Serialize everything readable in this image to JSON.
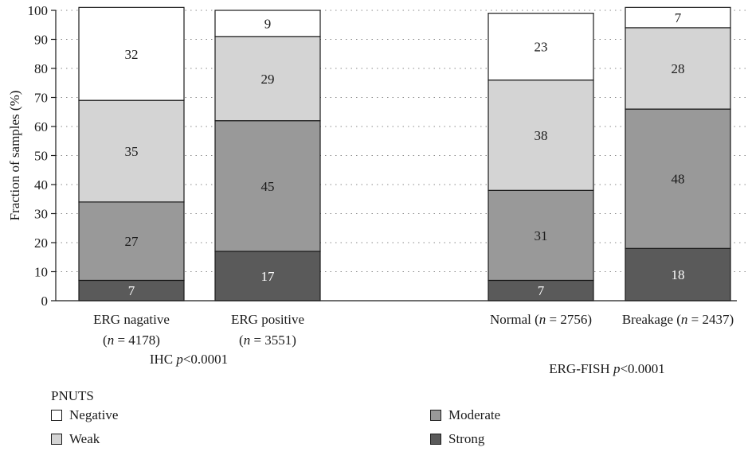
{
  "chart_data": {
    "type": "bar",
    "stacked": true,
    "ylabel": "Fraction of samples (%)",
    "ylim": [
      0,
      100
    ],
    "yticks": [
      0,
      10,
      20,
      30,
      40,
      50,
      60,
      70,
      80,
      90,
      100
    ],
    "grid": "dotted horizontal",
    "categories": [
      {
        "line1": "ERG nagative",
        "line2": "(n = 4178)",
        "group": 0
      },
      {
        "line1": "ERG positive",
        "line2": "(n = 3551)",
        "group": 0
      },
      {
        "line1": "Normal (n = 2756)",
        "line2": "",
        "group": 1
      },
      {
        "line1": "Breakage (n = 2437)",
        "line2": "",
        "group": 1
      }
    ],
    "groups": [
      {
        "label": "IHC p<0.0001"
      },
      {
        "label": "ERG-FISH p<0.0001"
      }
    ],
    "series": [
      {
        "name": "Strong",
        "color": "#5a5a5a",
        "values": [
          7,
          17,
          7,
          18
        ]
      },
      {
        "name": "Moderate",
        "color": "#999999",
        "values": [
          27,
          45,
          31,
          48
        ]
      },
      {
        "name": "Weak",
        "color": "#d4d4d4",
        "values": [
          35,
          29,
          38,
          28
        ]
      },
      {
        "name": "Negative",
        "color": "#ffffff",
        "values": [
          32,
          9,
          23,
          7
        ]
      }
    ],
    "legend": {
      "title": "PNUTS",
      "placement": "bottom",
      "items": [
        "Negative",
        "Weak",
        "Moderate",
        "Strong"
      ]
    }
  }
}
